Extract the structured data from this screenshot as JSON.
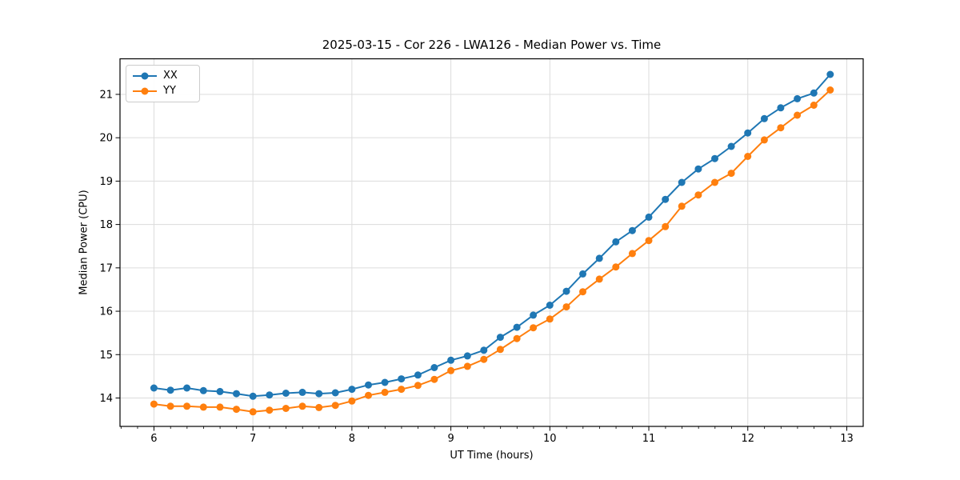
{
  "chart_data": {
    "type": "line",
    "title": "2025-03-15 - Cor 226 - LWA126 - Median Power vs. Time",
    "xlabel": "UT Time (hours)",
    "ylabel": "Median Power (CPU)",
    "grid": true,
    "legend_position": "upper left",
    "marker": "circle",
    "xlim": [
      5.657,
      13.166
    ],
    "ylim": [
      13.345,
      21.82
    ],
    "xticks": [
      6,
      7,
      8,
      9,
      10,
      11,
      12,
      13
    ],
    "yticks": [
      14,
      15,
      16,
      17,
      18,
      19,
      20,
      21
    ],
    "x_minor_step": 0.1667,
    "x": [
      6.0,
      6.167,
      6.333,
      6.5,
      6.667,
      6.833,
      7.0,
      7.167,
      7.333,
      7.5,
      7.667,
      7.833,
      8.0,
      8.167,
      8.333,
      8.5,
      8.667,
      8.833,
      9.0,
      9.167,
      9.333,
      9.5,
      9.667,
      9.833,
      10.0,
      10.167,
      10.333,
      10.5,
      10.667,
      10.833,
      11.0,
      11.167,
      11.333,
      11.5,
      11.667,
      11.833,
      12.0,
      12.167,
      12.333,
      12.5,
      12.667,
      12.833
    ],
    "series": [
      {
        "name": "XX",
        "color": "#1f77b4",
        "values": [
          14.23,
          14.18,
          14.23,
          14.17,
          14.15,
          14.1,
          14.04,
          14.07,
          14.11,
          14.13,
          14.1,
          14.12,
          14.2,
          14.3,
          14.36,
          14.44,
          14.53,
          14.7,
          14.87,
          14.97,
          15.1,
          15.4,
          15.63,
          15.91,
          16.14,
          16.46,
          16.86,
          17.22,
          17.6,
          17.86,
          18.17,
          18.58,
          18.97,
          19.28,
          19.52,
          19.8,
          20.11,
          20.44,
          20.69,
          20.9,
          21.03,
          21.46
        ]
      },
      {
        "name": "YY",
        "color": "#ff7f0e",
        "values": [
          13.86,
          13.81,
          13.81,
          13.79,
          13.79,
          13.74,
          13.68,
          13.72,
          13.76,
          13.81,
          13.78,
          13.83,
          13.93,
          14.06,
          14.13,
          14.2,
          14.29,
          14.43,
          14.63,
          14.73,
          14.89,
          15.12,
          15.37,
          15.62,
          15.82,
          16.1,
          16.45,
          16.74,
          17.02,
          17.33,
          17.63,
          17.95,
          18.42,
          18.68,
          18.97,
          19.18,
          19.57,
          19.95,
          20.23,
          20.52,
          20.75,
          21.1
        ]
      }
    ]
  }
}
